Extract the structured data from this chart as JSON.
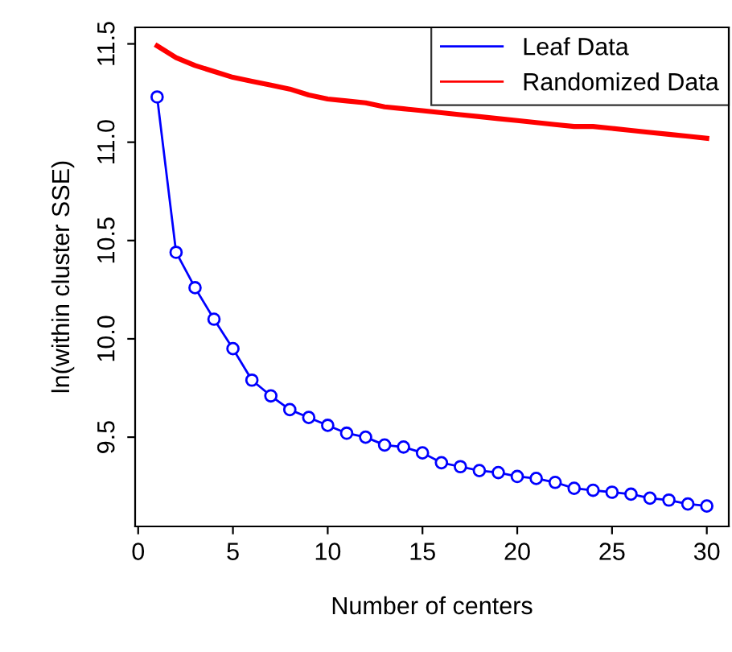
{
  "chart_data": {
    "type": "line",
    "xlabel": "Number of centers",
    "ylabel": "ln(within cluster SSE)",
    "x": [
      1,
      2,
      3,
      4,
      5,
      6,
      7,
      8,
      9,
      10,
      11,
      12,
      13,
      14,
      15,
      16,
      17,
      18,
      19,
      20,
      21,
      22,
      23,
      24,
      25,
      26,
      27,
      28,
      29,
      30
    ],
    "series": [
      {
        "name": "Leaf Data",
        "color": "#0000ff",
        "marker": "circle",
        "values": [
          11.23,
          10.44,
          10.26,
          10.1,
          9.95,
          9.79,
          9.71,
          9.64,
          9.6,
          9.56,
          9.52,
          9.5,
          9.46,
          9.45,
          9.42,
          9.37,
          9.35,
          9.33,
          9.32,
          9.3,
          9.29,
          9.27,
          9.24,
          9.23,
          9.22,
          9.21,
          9.19,
          9.18,
          9.16,
          9.15
        ]
      },
      {
        "name": "Randomized Data",
        "color": "#ff0000",
        "marker": "none",
        "values": [
          11.49,
          11.43,
          11.39,
          11.36,
          11.33,
          11.31,
          11.29,
          11.27,
          11.24,
          11.22,
          11.21,
          11.2,
          11.18,
          11.17,
          11.16,
          11.15,
          11.14,
          11.13,
          11.12,
          11.11,
          11.1,
          11.09,
          11.08,
          11.08,
          11.07,
          11.06,
          11.05,
          11.04,
          11.03,
          11.02
        ]
      }
    ],
    "xlim": [
      -0.16,
      31.16
    ],
    "ylim": [
      9.046,
      11.584
    ],
    "xticks": [
      0,
      5,
      10,
      15,
      20,
      25,
      30
    ],
    "yticks": [
      9.5,
      {
        "value": 10,
        "label": "10.0"
      },
      10.5,
      {
        "value": 11,
        "label": "11.0"
      },
      11.5
    ],
    "legend": "top right",
    "grid": false
  }
}
